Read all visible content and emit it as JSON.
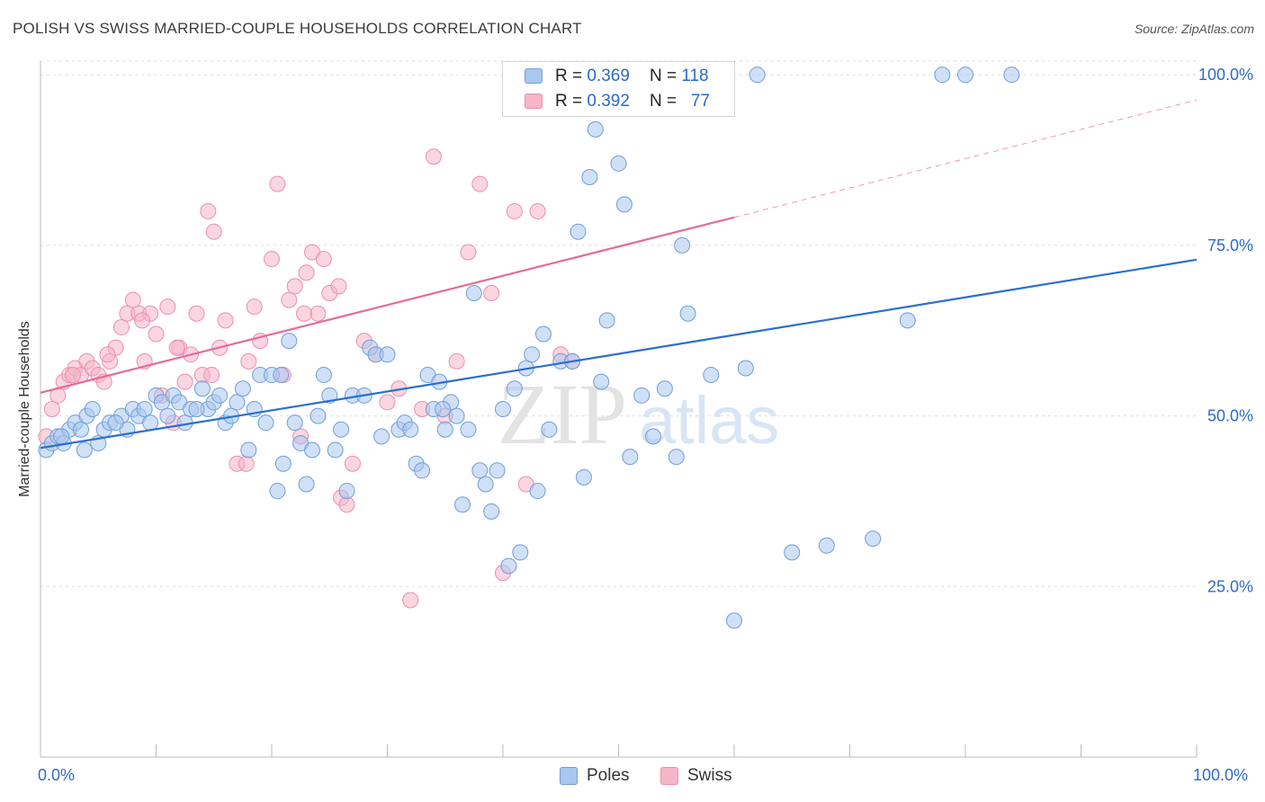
{
  "header": {
    "title": "POLISH VS SWISS MARRIED-COUPLE HOUSEHOLDS CORRELATION CHART",
    "source": "Source: ZipAtlas.com"
  },
  "watermark": {
    "zip": "ZIP",
    "atlas": "atlas"
  },
  "legend_stats": [
    {
      "r_label": "R = ",
      "r_value": "0.369",
      "n_label": "N = ",
      "n_value": "118",
      "color": "#aac7ee"
    },
    {
      "r_label": "R = ",
      "r_value": "0.392",
      "n_label": "N = ",
      "n_value": "77",
      "color": "#f6b5c9"
    }
  ],
  "colors": {
    "poles_fill": "#aac7ee",
    "poles_stroke": "#6f9fd8",
    "poles_line": "#2a6fcf",
    "swiss_fill": "#f6b5c9",
    "swiss_stroke": "#ec8fad",
    "swiss_line": "#e46c95",
    "tick_text": "#2f6bc8",
    "grid": "#dddddd"
  },
  "chart_data": {
    "type": "scatter",
    "title": "POLISH VS SWISS MARRIED-COUPLE HOUSEHOLDS CORRELATION CHART",
    "xlabel": "",
    "ylabel": "Married-couple Households",
    "x_tick_labels": [
      "0.0%",
      "100.0%"
    ],
    "y_tick_labels": [
      "25.0%",
      "50.0%",
      "75.0%",
      "100.0%"
    ],
    "xlim": [
      0,
      100
    ],
    "ylim": [
      0,
      102
    ],
    "grid": true,
    "legend_position": "bottom",
    "series": [
      {
        "name": "Poles",
        "trend": {
          "x0": 0,
          "y0": 45.3,
          "x1": 100,
          "y1": 72.9
        },
        "points": [
          [
            0.5,
            45
          ],
          [
            1.0,
            46
          ],
          [
            1.5,
            47
          ],
          [
            2.0,
            46
          ],
          [
            2.5,
            48
          ],
          [
            3.0,
            49
          ],
          [
            3.5,
            48
          ],
          [
            4.0,
            50
          ],
          [
            4.5,
            51
          ],
          [
            5.0,
            46
          ],
          [
            5.5,
            48
          ],
          [
            6.0,
            49
          ],
          [
            7.0,
            50
          ],
          [
            7.5,
            48
          ],
          [
            8.0,
            51
          ],
          [
            8.5,
            50
          ],
          [
            9.0,
            51
          ],
          [
            10.0,
            53
          ],
          [
            10.5,
            52
          ],
          [
            11.0,
            50
          ],
          [
            11.5,
            53
          ],
          [
            12.0,
            52
          ],
          [
            12.5,
            49
          ],
          [
            13.0,
            51
          ],
          [
            14.0,
            54
          ],
          [
            14.5,
            51
          ],
          [
            15.0,
            52
          ],
          [
            15.5,
            53
          ],
          [
            16.0,
            49
          ],
          [
            16.5,
            50
          ],
          [
            17.0,
            52
          ],
          [
            17.5,
            54
          ],
          [
            18.0,
            45
          ],
          [
            18.5,
            51
          ],
          [
            19.0,
            56
          ],
          [
            19.5,
            49
          ],
          [
            20.0,
            56
          ],
          [
            20.5,
            39
          ],
          [
            21.0,
            43
          ],
          [
            21.5,
            61
          ],
          [
            22.0,
            49
          ],
          [
            22.5,
            46
          ],
          [
            23.0,
            40
          ],
          [
            23.5,
            45
          ],
          [
            24.0,
            50
          ],
          [
            24.5,
            56
          ],
          [
            25.0,
            53
          ],
          [
            25.5,
            45
          ],
          [
            26.0,
            48
          ],
          [
            26.5,
            39
          ],
          [
            27.0,
            53
          ],
          [
            28.0,
            53
          ],
          [
            28.5,
            60
          ],
          [
            29.0,
            59
          ],
          [
            29.5,
            47
          ],
          [
            30.0,
            59
          ],
          [
            31.0,
            48
          ],
          [
            31.5,
            49
          ],
          [
            32.0,
            48
          ],
          [
            32.5,
            43
          ],
          [
            33.0,
            42
          ],
          [
            33.5,
            56
          ],
          [
            34.0,
            51
          ],
          [
            34.5,
            55
          ],
          [
            35.0,
            48
          ],
          [
            35.5,
            52
          ],
          [
            36.0,
            50
          ],
          [
            36.5,
            37
          ],
          [
            37.0,
            48
          ],
          [
            37.5,
            68
          ],
          [
            38.0,
            42
          ],
          [
            38.5,
            40
          ],
          [
            39.0,
            36
          ],
          [
            39.5,
            42
          ],
          [
            40.0,
            51
          ],
          [
            40.5,
            28
          ],
          [
            41.0,
            54
          ],
          [
            41.5,
            30
          ],
          [
            42.0,
            57
          ],
          [
            42.5,
            59
          ],
          [
            43.0,
            39
          ],
          [
            43.5,
            62
          ],
          [
            44.0,
            48
          ],
          [
            45.0,
            58
          ],
          [
            46.0,
            58
          ],
          [
            46.5,
            77
          ],
          [
            47.0,
            41
          ],
          [
            47.5,
            85
          ],
          [
            48.0,
            92
          ],
          [
            48.5,
            55
          ],
          [
            49.0,
            64
          ],
          [
            50.0,
            87
          ],
          [
            50.5,
            81
          ],
          [
            51.0,
            44
          ],
          [
            52.0,
            53
          ],
          [
            53.0,
            47
          ],
          [
            54.0,
            54
          ],
          [
            55.0,
            44
          ],
          [
            55.5,
            75
          ],
          [
            56.0,
            65
          ],
          [
            58.0,
            56
          ],
          [
            60.0,
            20
          ],
          [
            61.0,
            57
          ],
          [
            62.0,
            100
          ],
          [
            65.0,
            30
          ],
          [
            68.0,
            31
          ],
          [
            72.0,
            32
          ],
          [
            75.0,
            64
          ],
          [
            78.0,
            100
          ],
          [
            80.0,
            100
          ],
          [
            84.0,
            100
          ],
          [
            1.8,
            47
          ],
          [
            3.8,
            45
          ],
          [
            6.5,
            49
          ],
          [
            9.5,
            49
          ],
          [
            13.5,
            51
          ],
          [
            20.8,
            56
          ],
          [
            34.8,
            51
          ]
        ]
      },
      {
        "name": "Swiss",
        "trend": {
          "x0": 0,
          "y0": 53.4,
          "x1": 60,
          "y1": 79.1
        },
        "trend_extension": {
          "x0": 60,
          "y0": 79.1,
          "x1": 100,
          "y1": 96.3
        },
        "points": [
          [
            0.5,
            47
          ],
          [
            1.0,
            51
          ],
          [
            1.5,
            53
          ],
          [
            2.0,
            55
          ],
          [
            2.5,
            56
          ],
          [
            3.0,
            57
          ],
          [
            3.5,
            56
          ],
          [
            4.0,
            58
          ],
          [
            4.5,
            57
          ],
          [
            5.0,
            56
          ],
          [
            5.5,
            55
          ],
          [
            6.0,
            58
          ],
          [
            6.5,
            60
          ],
          [
            7.0,
            63
          ],
          [
            7.5,
            65
          ],
          [
            8.0,
            67
          ],
          [
            8.5,
            65
          ],
          [
            9.0,
            58
          ],
          [
            9.5,
            65
          ],
          [
            10.0,
            62
          ],
          [
            10.5,
            53
          ],
          [
            11.0,
            66
          ],
          [
            11.5,
            49
          ],
          [
            12.0,
            60
          ],
          [
            12.5,
            55
          ],
          [
            13.0,
            59
          ],
          [
            13.5,
            65
          ],
          [
            14.0,
            56
          ],
          [
            14.5,
            80
          ],
          [
            15.0,
            77
          ],
          [
            15.5,
            60
          ],
          [
            16.0,
            64
          ],
          [
            17.0,
            43
          ],
          [
            18.0,
            58
          ],
          [
            18.5,
            66
          ],
          [
            19.0,
            61
          ],
          [
            20.0,
            73
          ],
          [
            20.5,
            84
          ],
          [
            21.0,
            56
          ],
          [
            21.5,
            67
          ],
          [
            22.0,
            69
          ],
          [
            22.5,
            47
          ],
          [
            23.0,
            71
          ],
          [
            23.5,
            74
          ],
          [
            24.0,
            65
          ],
          [
            24.5,
            73
          ],
          [
            25.0,
            68
          ],
          [
            26.0,
            38
          ],
          [
            26.5,
            37
          ],
          [
            27.0,
            43
          ],
          [
            28.0,
            61
          ],
          [
            29.0,
            59
          ],
          [
            30.0,
            52
          ],
          [
            31.0,
            54
          ],
          [
            32.0,
            23
          ],
          [
            33.0,
            51
          ],
          [
            34.0,
            88
          ],
          [
            35.0,
            50
          ],
          [
            36.0,
            58
          ],
          [
            37.0,
            74
          ],
          [
            38.0,
            84
          ],
          [
            39.0,
            68
          ],
          [
            40.0,
            27
          ],
          [
            41.0,
            80
          ],
          [
            42.0,
            40
          ],
          [
            43.0,
            80
          ],
          [
            44.0,
            100
          ],
          [
            45.0,
            59
          ],
          [
            46.0,
            58
          ],
          [
            2.8,
            56
          ],
          [
            5.8,
            59
          ],
          [
            8.8,
            64
          ],
          [
            11.8,
            60
          ],
          [
            14.8,
            56
          ],
          [
            17.8,
            43
          ],
          [
            22.8,
            65
          ],
          [
            25.8,
            69
          ]
        ]
      }
    ]
  }
}
